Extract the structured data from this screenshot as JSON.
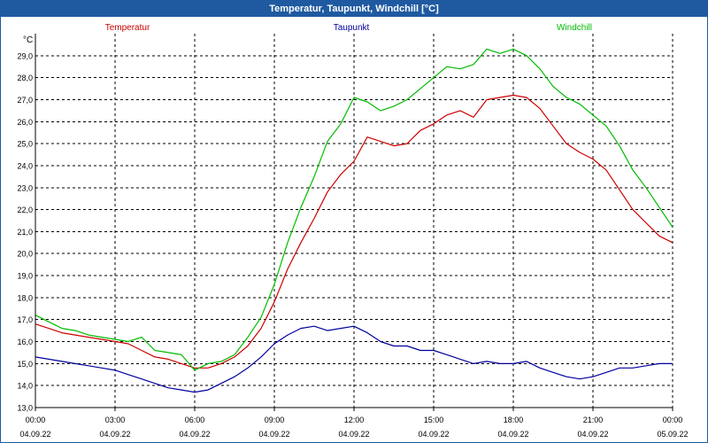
{
  "window": {
    "title": "Temperatur, Taupunkt, Windchill [°C]"
  },
  "chart_data": {
    "type": "line",
    "title": "Temperatur, Taupunkt, Windchill [°C]",
    "yunit": "°C",
    "ylim": [
      13.0,
      30.0
    ],
    "xlim_hours": [
      0,
      24
    ],
    "grid": true,
    "legend_placement": "top",
    "y_ticks": [
      "13,0",
      "14,0",
      "15,0",
      "16,0",
      "17,0",
      "18,0",
      "19,0",
      "20,0",
      "21,0",
      "22,0",
      "23,0",
      "24,0",
      "25,0",
      "26,0",
      "27,0",
      "28,0",
      "29,0"
    ],
    "x_ticks": [
      {
        "time": "00:00",
        "date": "04.09.22"
      },
      {
        "time": "03:00",
        "date": "04.09.22"
      },
      {
        "time": "06:00",
        "date": "04.09.22"
      },
      {
        "time": "09:00",
        "date": "04.09.22"
      },
      {
        "time": "12:00",
        "date": "04.09.22"
      },
      {
        "time": "15:00",
        "date": "04.09.22"
      },
      {
        "time": "18:00",
        "date": "04.09.22"
      },
      {
        "time": "21:00",
        "date": "04.09.22"
      },
      {
        "time": "00:00",
        "date": "05.09.22"
      }
    ],
    "x": [
      0,
      0.5,
      1,
      1.5,
      2,
      2.5,
      3,
      3.5,
      4,
      4.5,
      5,
      5.5,
      6,
      6.5,
      7,
      7.5,
      8,
      8.5,
      9,
      9.5,
      10,
      10.5,
      11,
      11.5,
      12,
      12.5,
      13,
      13.5,
      14,
      14.5,
      15,
      15.5,
      16,
      16.5,
      17,
      17.5,
      18,
      18.5,
      19,
      19.5,
      20,
      20.5,
      21,
      21.5,
      22,
      22.5,
      23,
      23.5,
      24
    ],
    "series": [
      {
        "name": "Temperatur",
        "color": "#cc0000",
        "values": [
          16.8,
          16.6,
          16.4,
          16.3,
          16.2,
          16.1,
          16.0,
          15.9,
          15.6,
          15.3,
          15.2,
          15.0,
          14.8,
          14.8,
          15.0,
          15.3,
          15.8,
          16.6,
          17.8,
          19.3,
          20.5,
          21.6,
          22.8,
          23.6,
          24.2,
          25.3,
          25.1,
          24.9,
          25.0,
          25.6,
          25.9,
          26.3,
          26.5,
          26.2,
          27.0,
          27.1,
          27.2,
          27.1,
          26.6,
          25.8,
          25.0,
          24.6,
          24.3,
          23.8,
          22.9,
          22.0,
          21.4,
          20.8,
          20.5
        ]
      },
      {
        "name": "Taupunkt",
        "color": "#00009e",
        "values": [
          15.3,
          15.2,
          15.1,
          15.0,
          14.9,
          14.8,
          14.7,
          14.5,
          14.3,
          14.1,
          13.9,
          13.8,
          13.7,
          13.8,
          14.1,
          14.4,
          14.8,
          15.3,
          15.9,
          16.3,
          16.6,
          16.7,
          16.5,
          16.6,
          16.7,
          16.4,
          16.0,
          15.8,
          15.8,
          15.6,
          15.6,
          15.4,
          15.2,
          15.0,
          15.1,
          15.0,
          15.0,
          15.1,
          14.8,
          14.6,
          14.4,
          14.3,
          14.4,
          14.6,
          14.8,
          14.8,
          14.9,
          15.0,
          15.0
        ]
      },
      {
        "name": "Windchill",
        "color": "#00bb00",
        "values": [
          17.2,
          16.9,
          16.6,
          16.5,
          16.3,
          16.2,
          16.1,
          16.0,
          16.2,
          15.6,
          15.5,
          15.4,
          14.7,
          15.0,
          15.1,
          15.4,
          16.2,
          17.1,
          18.6,
          20.5,
          22.1,
          23.5,
          25.1,
          25.9,
          27.1,
          26.9,
          26.5,
          26.7,
          27.0,
          27.5,
          28.0,
          28.5,
          28.4,
          28.6,
          29.3,
          29.1,
          29.3,
          29.0,
          28.4,
          27.6,
          27.1,
          26.8,
          26.3,
          25.8,
          24.9,
          23.8,
          23.0,
          22.1,
          21.2
        ]
      }
    ]
  }
}
